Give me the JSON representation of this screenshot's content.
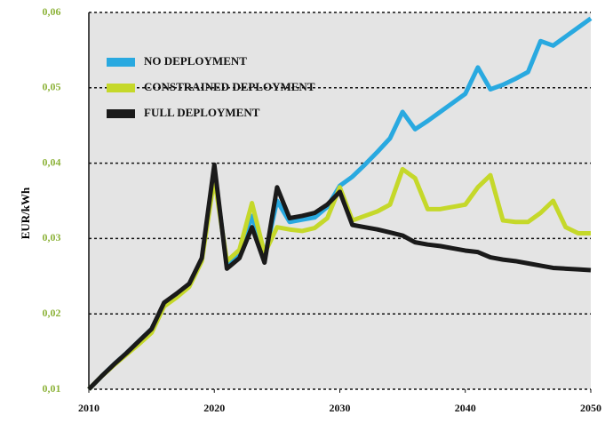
{
  "chart_data": {
    "type": "line",
    "y_label": "EUR/kWh",
    "x": [
      2010,
      2011,
      2012,
      2013,
      2014,
      2015,
      2016,
      2017,
      2018,
      2019,
      2020,
      2021,
      2022,
      2023,
      2024,
      2025,
      2026,
      2027,
      2028,
      2029,
      2030,
      2031,
      2032,
      2033,
      2034,
      2035,
      2036,
      2037,
      2038,
      2039,
      2040,
      2041,
      2042,
      2043,
      2044,
      2045,
      2046,
      2047,
      2048,
      2049,
      2050
    ],
    "series": [
      {
        "name": "NO DEPLOYMENT",
        "color": "#29a9e0",
        "values": [
          0.01,
          0.0117,
          0.0133,
          0.0148,
          0.0164,
          0.018,
          0.0213,
          0.0225,
          0.0238,
          0.0272,
          0.039,
          0.0265,
          0.028,
          0.033,
          0.0275,
          0.035,
          0.0322,
          0.0325,
          0.0328,
          0.0342,
          0.037,
          0.0382,
          0.0398,
          0.0415,
          0.0433,
          0.0468,
          0.0445,
          0.0456,
          0.0468,
          0.048,
          0.0492,
          0.0527,
          0.0498,
          0.0504,
          0.0512,
          0.0521,
          0.0562,
          0.0556,
          0.0568,
          0.058,
          0.0592
        ]
      },
      {
        "name": "CONSTRAINED DEPLOYMENT",
        "color": "#c5d82a",
        "values": [
          0.01,
          0.0117,
          0.0132,
          0.0146,
          0.016,
          0.0175,
          0.021,
          0.0222,
          0.0236,
          0.027,
          0.038,
          0.027,
          0.0285,
          0.0347,
          0.028,
          0.0315,
          0.0312,
          0.031,
          0.0314,
          0.0327,
          0.0368,
          0.0324,
          0.033,
          0.0336,
          0.0345,
          0.0392,
          0.038,
          0.0339,
          0.0339,
          0.0342,
          0.0345,
          0.0368,
          0.0384,
          0.0324,
          0.0322,
          0.0322,
          0.0334,
          0.035,
          0.0315,
          0.0307,
          0.0307
        ]
      },
      {
        "name": "FULL DEPLOYMENT",
        "color": "#1a1a1a",
        "values": [
          0.01,
          0.0117,
          0.0133,
          0.0148,
          0.0164,
          0.018,
          0.0215,
          0.0227,
          0.024,
          0.0274,
          0.0398,
          0.026,
          0.0274,
          0.0315,
          0.0268,
          0.0368,
          0.0327,
          0.033,
          0.0334,
          0.0345,
          0.0362,
          0.0318,
          0.0315,
          0.0312,
          0.0308,
          0.0304,
          0.0295,
          0.0292,
          0.029,
          0.0287,
          0.0284,
          0.0282,
          0.0275,
          0.0272,
          0.027,
          0.0267,
          0.0264,
          0.0261,
          0.026,
          0.0259,
          0.0258
        ]
      }
    ],
    "xlim": [
      2010,
      2050
    ],
    "xticks": [
      2010,
      2020,
      2030,
      2040,
      2050
    ],
    "ylim": [
      0.01,
      0.06
    ],
    "yticks": [
      {
        "value": 0.01,
        "label": "0,01"
      },
      {
        "value": 0.02,
        "label": "0,02"
      },
      {
        "value": 0.03,
        "label": "0,03"
      },
      {
        "value": 0.04,
        "label": "0,04"
      },
      {
        "value": 0.05,
        "label": "0,05"
      },
      {
        "value": 0.06,
        "label": "0,06"
      }
    ],
    "grid": true,
    "legend": "upper left"
  }
}
